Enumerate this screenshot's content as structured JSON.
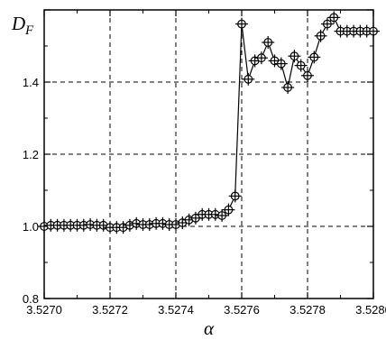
{
  "chart_data": {
    "type": "scatter",
    "title": "",
    "xlabel": "α",
    "ylabel": "D",
    "ylabel_subscript": "F",
    "xlim": [
      3.527,
      3.528
    ],
    "ylim": [
      0.8,
      1.6
    ],
    "grid": true,
    "x_ticks": [
      3.527,
      3.5272,
      3.5274,
      3.5276,
      3.5278,
      3.528
    ],
    "x_tick_labels": [
      "3.5270",
      "3.5272",
      "3.5274",
      "3.5276",
      "3.5278",
      "3.5280"
    ],
    "y_ticks": [
      0.8,
      1.0,
      1.2,
      1.4
    ],
    "y_tick_labels": [
      "0.8",
      "1.0",
      "1.2",
      "1.4"
    ],
    "series": [
      {
        "marker": "circle-plus",
        "line": true,
        "color": "#000000",
        "x": [
          3.527,
          3.52702,
          3.52704,
          3.52706,
          3.52708,
          3.5271,
          3.52712,
          3.52714,
          3.52716,
          3.52718,
          3.5272,
          3.52722,
          3.52724,
          3.52726,
          3.52728,
          3.5273,
          3.52732,
          3.52734,
          3.52736,
          3.52738,
          3.5274,
          3.52742,
          3.52744,
          3.52746,
          3.52748,
          3.5275,
          3.52752,
          3.52754,
          3.52756,
          3.52758,
          3.5276,
          3.52762,
          3.52764,
          3.52766,
          3.52768,
          3.5277,
          3.52772,
          3.52774,
          3.52776,
          3.52778,
          3.5278,
          3.52782,
          3.52784,
          3.52786,
          3.52788,
          3.5279,
          3.52792,
          3.52794,
          3.52796,
          3.52798,
          3.528
        ],
        "y": [
          1.0,
          1.003,
          1.003,
          1.003,
          1.003,
          1.003,
          1.003,
          1.005,
          1.003,
          1.003,
          0.997,
          0.997,
          0.997,
          1.003,
          1.008,
          1.005,
          1.005,
          1.008,
          1.008,
          1.005,
          1.005,
          1.01,
          1.018,
          1.023,
          1.033,
          1.033,
          1.033,
          1.03,
          1.046,
          1.084,
          1.561,
          1.408,
          1.459,
          1.467,
          1.51,
          1.459,
          1.451,
          1.385,
          1.472,
          1.446,
          1.418,
          1.469,
          1.528,
          1.561,
          1.579,
          1.541,
          1.541,
          1.541,
          1.541,
          1.541,
          1.541
        ]
      }
    ]
  }
}
